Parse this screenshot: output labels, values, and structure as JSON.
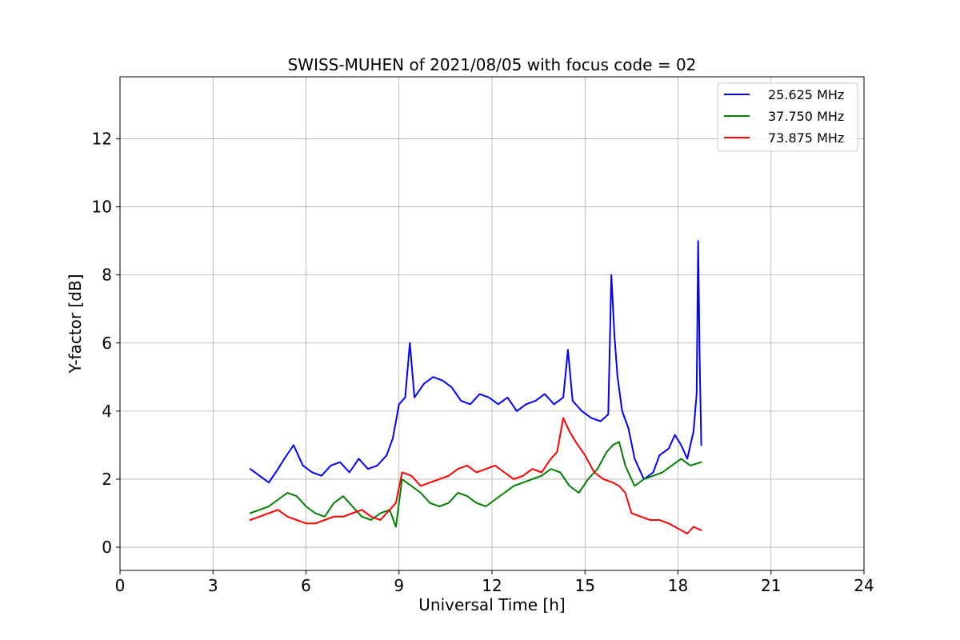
{
  "chart_data": {
    "type": "line",
    "title": "SWISS-MUHEN of 2021/08/05 with focus code = 02",
    "xlabel": "Universal Time [h]",
    "ylabel": "Y-factor [dB]",
    "xlim": [
      0,
      24
    ],
    "ylim": [
      -0.68,
      13.82
    ],
    "xticks": [
      0,
      3,
      6,
      9,
      12,
      15,
      18,
      21,
      24
    ],
    "yticks": [
      0,
      2,
      4,
      6,
      8,
      10,
      12
    ],
    "grid": true,
    "legend_position": "top-right",
    "series": [
      {
        "name": "25.625 MHz",
        "color": "#0000ff",
        "x": [
          4.2,
          4.5,
          4.8,
          5.1,
          5.3,
          5.6,
          5.9,
          6.2,
          6.5,
          6.8,
          7.1,
          7.4,
          7.7,
          8.0,
          8.3,
          8.6,
          8.8,
          9.0,
          9.2,
          9.35,
          9.5,
          9.8,
          10.1,
          10.4,
          10.7,
          11.0,
          11.3,
          11.6,
          11.9,
          12.2,
          12.5,
          12.8,
          13.1,
          13.4,
          13.7,
          14.0,
          14.3,
          14.45,
          14.6,
          14.9,
          15.2,
          15.5,
          15.75,
          15.85,
          15.95,
          16.05,
          16.2,
          16.4,
          16.6,
          16.9,
          17.2,
          17.4,
          17.55,
          17.7,
          17.9,
          18.1,
          18.3,
          18.5,
          18.6,
          18.65,
          18.7,
          18.75
        ],
        "y": [
          2.3,
          2.1,
          1.9,
          2.3,
          2.6,
          3.0,
          2.4,
          2.2,
          2.1,
          2.4,
          2.5,
          2.2,
          2.6,
          2.3,
          2.4,
          2.7,
          3.2,
          4.2,
          4.4,
          6.0,
          4.4,
          4.8,
          5.0,
          4.9,
          4.7,
          4.3,
          4.2,
          4.5,
          4.4,
          4.2,
          4.4,
          4.0,
          4.2,
          4.3,
          4.5,
          4.2,
          4.4,
          5.8,
          4.3,
          4.0,
          3.8,
          3.7,
          3.9,
          8.0,
          6.2,
          5.0,
          4.0,
          3.5,
          2.6,
          2.0,
          2.2,
          2.7,
          2.8,
          2.9,
          3.3,
          3.0,
          2.6,
          3.4,
          4.5,
          9.0,
          5.5,
          3.0
        ]
      },
      {
        "name": "37.750 MHz",
        "color": "#008000",
        "x": [
          4.2,
          4.5,
          4.8,
          5.1,
          5.4,
          5.7,
          6.0,
          6.3,
          6.6,
          6.9,
          7.2,
          7.5,
          7.8,
          8.1,
          8.4,
          8.7,
          8.9,
          9.1,
          9.4,
          9.7,
          10.0,
          10.3,
          10.6,
          10.9,
          11.2,
          11.5,
          11.8,
          12.1,
          12.4,
          12.7,
          13.0,
          13.3,
          13.6,
          13.9,
          14.2,
          14.5,
          14.8,
          15.1,
          15.4,
          15.7,
          15.9,
          16.1,
          16.3,
          16.6,
          16.9,
          17.2,
          17.5,
          17.8,
          18.1,
          18.4,
          18.75
        ],
        "y": [
          1.0,
          1.1,
          1.2,
          1.4,
          1.6,
          1.5,
          1.2,
          1.0,
          0.9,
          1.3,
          1.5,
          1.2,
          0.9,
          0.8,
          1.0,
          1.1,
          0.6,
          2.0,
          1.8,
          1.6,
          1.3,
          1.2,
          1.3,
          1.6,
          1.5,
          1.3,
          1.2,
          1.4,
          1.6,
          1.8,
          1.9,
          2.0,
          2.1,
          2.3,
          2.2,
          1.8,
          1.6,
          2.0,
          2.3,
          2.8,
          3.0,
          3.1,
          2.4,
          1.8,
          2.0,
          2.1,
          2.2,
          2.4,
          2.6,
          2.4,
          2.5
        ]
      },
      {
        "name": "73.875 MHz",
        "color": "#ff0000",
        "x": [
          4.2,
          4.5,
          4.8,
          5.1,
          5.4,
          5.7,
          6.0,
          6.3,
          6.6,
          6.9,
          7.2,
          7.5,
          7.8,
          8.1,
          8.4,
          8.7,
          8.9,
          9.1,
          9.4,
          9.7,
          10.0,
          10.3,
          10.6,
          10.9,
          11.2,
          11.5,
          11.8,
          12.1,
          12.4,
          12.7,
          13.0,
          13.3,
          13.6,
          13.9,
          14.1,
          14.3,
          14.5,
          14.7,
          15.0,
          15.3,
          15.6,
          15.9,
          16.1,
          16.3,
          16.5,
          16.8,
          17.1,
          17.4,
          17.7,
          17.9,
          18.1,
          18.3,
          18.5,
          18.75
        ],
        "y": [
          0.8,
          0.9,
          1.0,
          1.1,
          0.9,
          0.8,
          0.7,
          0.7,
          0.8,
          0.9,
          0.9,
          1.0,
          1.1,
          0.9,
          0.8,
          1.1,
          1.3,
          2.2,
          2.1,
          1.8,
          1.9,
          2.0,
          2.1,
          2.3,
          2.4,
          2.2,
          2.3,
          2.4,
          2.2,
          2.0,
          2.1,
          2.3,
          2.2,
          2.6,
          2.8,
          3.8,
          3.4,
          3.1,
          2.7,
          2.2,
          2.0,
          1.9,
          1.8,
          1.6,
          1.0,
          0.9,
          0.8,
          0.8,
          0.7,
          0.6,
          0.5,
          0.4,
          0.6,
          0.5
        ]
      }
    ]
  }
}
